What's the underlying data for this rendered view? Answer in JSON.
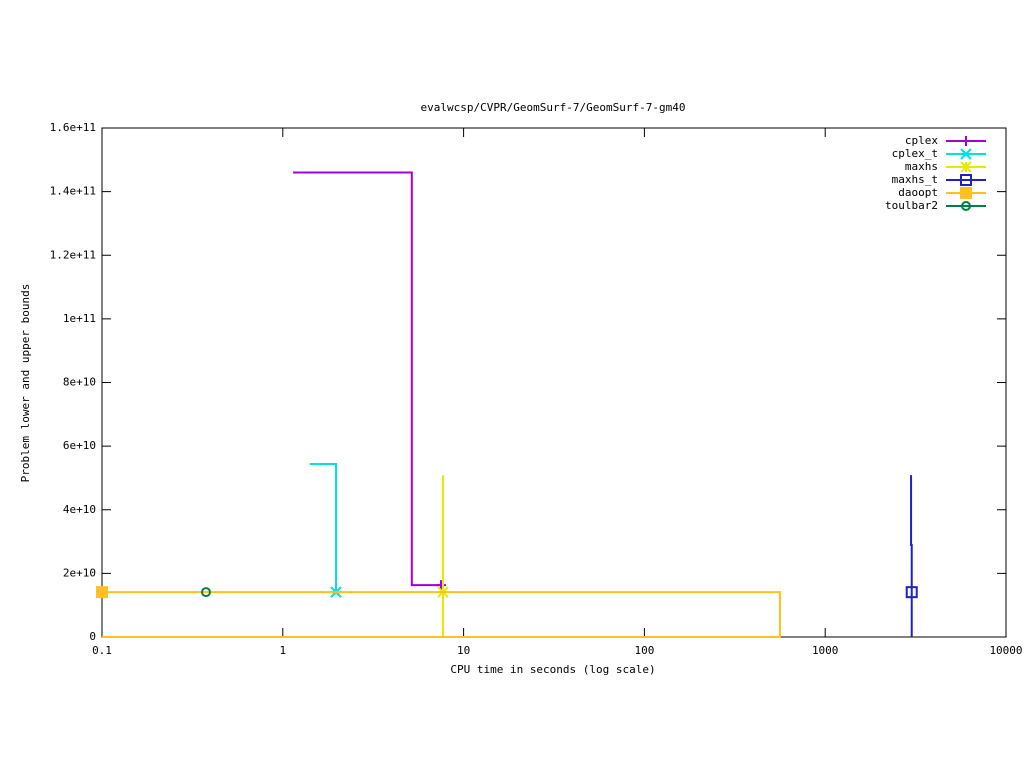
{
  "chart_data": {
    "type": "line",
    "title": "evalwcsp/CVPR/GeomSurf-7/GeomSurf-7-gm40",
    "xlabel": "CPU time in seconds (log scale)",
    "ylabel": "Problem lower and upper bounds",
    "xscale": "log",
    "xlim": [
      0.1,
      10000
    ],
    "xticks": [
      0.1,
      1,
      10,
      100,
      1000,
      10000
    ],
    "ylim": [
      0,
      160000000000
    ],
    "yticks": [
      0,
      {
        "value": 20000000000,
        "label": "2e+10"
      },
      {
        "value": 40000000000,
        "label": "4e+10"
      },
      {
        "value": 60000000000,
        "label": "6e+10"
      },
      {
        "value": 80000000000,
        "label": "8e+10"
      },
      {
        "value": 100000000000,
        "label": "1e+11"
      },
      {
        "value": 120000000000,
        "label": "1.2e+11"
      },
      {
        "value": 140000000000,
        "label": "1.4e+11"
      },
      {
        "value": 160000000000,
        "label": "1.6e+11"
      }
    ],
    "legend": "top-right",
    "series": [
      {
        "name": "cplex",
        "color": "#a000e0",
        "marker": "plus",
        "x": [
          1.14,
          5.17,
          5.17,
          7.5
        ],
        "values": [
          146000000000,
          146000000000,
          16300000000,
          16300000000
        ]
      },
      {
        "name": "cplex_t",
        "color": "#00e0e0",
        "marker": "asterisk",
        "x": [
          1.41,
          1.97,
          1.97
        ],
        "values": [
          54400000000,
          54400000000,
          14100000000
        ]
      },
      {
        "name": "maxhs",
        "color": "#e8e800",
        "marker": "star",
        "x": [
          7.69,
          7.69,
          7.69
        ],
        "values": [
          50900000000,
          0,
          14100000000
        ]
      },
      {
        "name": "maxhs_t",
        "color": "#2020c0",
        "marker": "square-open",
        "x": [
          2985,
          2985,
          3010,
          3010,
          3010
        ],
        "values": [
          50900000000,
          28900000000,
          28900000000,
          0,
          14100000000
        ]
      },
      {
        "name": "daoopt",
        "color": "#ffc020",
        "marker": "square",
        "x": [
          0.1,
          562,
          562,
          0.1
        ],
        "values": [
          0,
          0,
          14100000000,
          14100000000
        ]
      },
      {
        "name": "toulbar2",
        "color": "#008040",
        "marker": "circle",
        "x": [
          0.376
        ],
        "values": [
          14100000000
        ]
      }
    ]
  }
}
